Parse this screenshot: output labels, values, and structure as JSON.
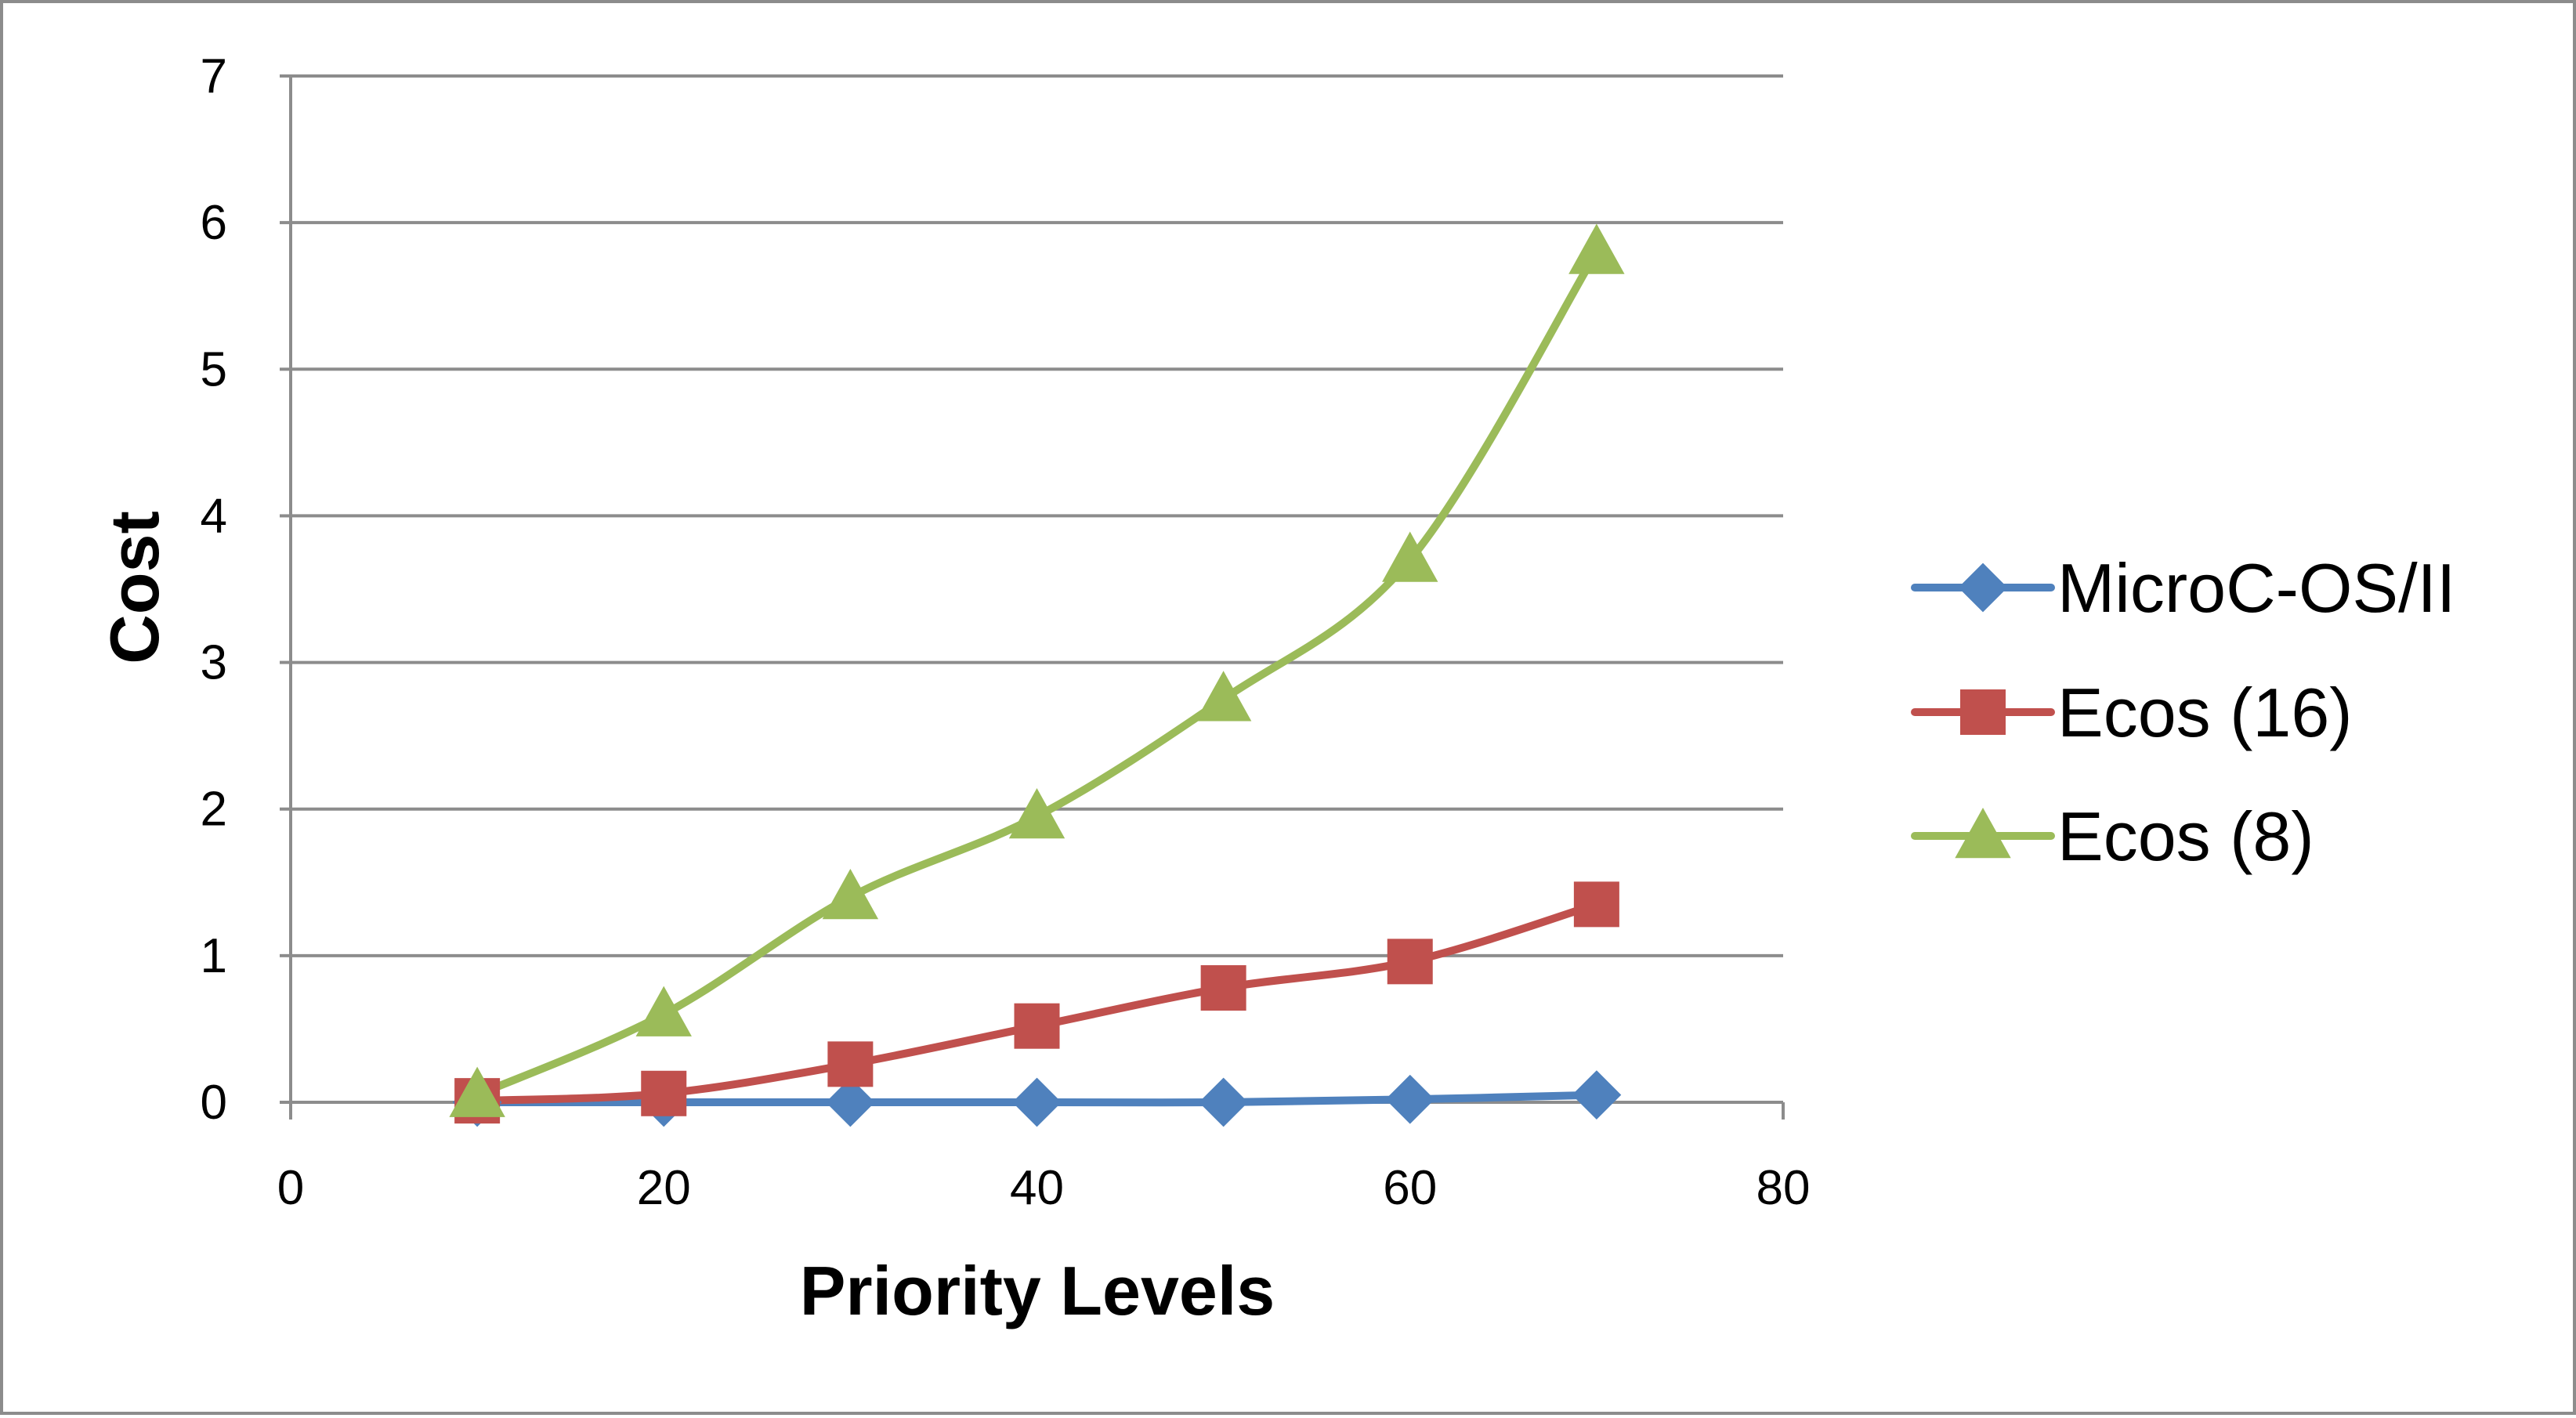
{
  "chart_data": {
    "type": "line",
    "title": "",
    "xlabel": "Priority Levels",
    "ylabel": "Cost",
    "xlim": [
      0,
      80
    ],
    "ylim": [
      0,
      7
    ],
    "xticks": [
      "0",
      "20",
      "40",
      "60",
      "80"
    ],
    "yticks": [
      "0",
      "1",
      "2",
      "3",
      "4",
      "5",
      "6",
      "7"
    ],
    "grid": "horizontal",
    "legend_position": "right",
    "x": [
      10,
      20,
      30,
      40,
      50,
      60,
      70
    ],
    "series": [
      {
        "name": "MicroC-OS/II",
        "color": "#4f81bd",
        "marker": "diamond",
        "values": [
          0,
          0,
          0,
          0,
          0,
          0.02,
          0.05
        ]
      },
      {
        "name": "Ecos (16)",
        "color": "#c0504d",
        "marker": "square",
        "values": [
          0.01,
          0.06,
          0.26,
          0.52,
          0.78,
          0.96,
          1.35
        ]
      },
      {
        "name": "Ecos (8)",
        "color": "#9bbb59",
        "marker": "triangle",
        "values": [
          0.05,
          0.6,
          1.4,
          1.95,
          2.75,
          3.7,
          5.8
        ]
      }
    ]
  }
}
